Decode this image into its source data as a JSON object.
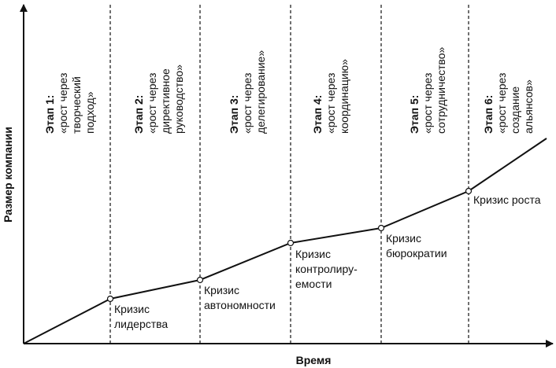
{
  "axes": {
    "x_label": "Время",
    "y_label": "Размер компании"
  },
  "stages": [
    {
      "title": "Этап 1:",
      "lines": [
        "«рост через",
        "творческий",
        "подход»"
      ]
    },
    {
      "title": "Этап 2:",
      "lines": [
        "«рост через",
        "директивное",
        "руководство»"
      ]
    },
    {
      "title": "Этап 3:",
      "lines": [
        "«рост через",
        "делегирование»"
      ]
    },
    {
      "title": "Этап 4:",
      "lines": [
        "«рост через",
        "координацию»"
      ]
    },
    {
      "title": "Этап 5:",
      "lines": [
        "«рост через",
        "сотрудничество»"
      ]
    },
    {
      "title": "Этап 6:",
      "lines": [
        "«рост через",
        "создание",
        "альянсов»"
      ]
    }
  ],
  "crises": [
    {
      "lines": [
        "Кризис",
        "лидерства"
      ]
    },
    {
      "lines": [
        "Кризис",
        "автономности"
      ]
    },
    {
      "lines": [
        "Кризис",
        "контролиру-",
        "емости"
      ]
    },
    {
      "lines": [
        "Кризис",
        "бюрократии"
      ]
    },
    {
      "lines": [
        "Кризис роста"
      ]
    }
  ],
  "colors": {
    "line": "#111111",
    "marker_fill": "#ffffff"
  }
}
